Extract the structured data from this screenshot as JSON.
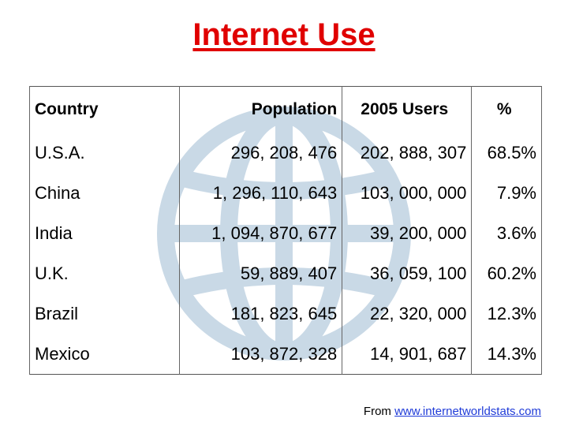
{
  "title": "Internet Use",
  "table": {
    "headers": {
      "country": "Country",
      "population": "Population",
      "users": "2005 Users",
      "pct": "%"
    },
    "rows": [
      {
        "country": "U.S.A.",
        "population": "296, 208, 476",
        "users": "202, 888, 307",
        "pct": "68.5%"
      },
      {
        "country": "China",
        "population": "1, 296, 110, 643",
        "users": "103, 000, 000",
        "pct": "7.9%"
      },
      {
        "country": "India",
        "population": "1, 094, 870, 677",
        "users": "39, 200, 000",
        "pct": "3.6%"
      },
      {
        "country": "U.K.",
        "population": "59, 889, 407",
        "users": "36, 059, 100",
        "pct": "60.2%"
      },
      {
        "country": "Brazil",
        "population": "181, 823, 645",
        "users": "22, 320, 000",
        "pct": "12.3%"
      },
      {
        "country": "Mexico",
        "population": "103, 872, 328",
        "users": "14, 901, 687",
        "pct": "14.3%"
      }
    ]
  },
  "source": {
    "prefix": "From ",
    "link": "www.internetworldstats.com"
  },
  "colors": {
    "title": "#e00000",
    "globe": "#c9d9e6",
    "link": "#1f3bd8"
  }
}
